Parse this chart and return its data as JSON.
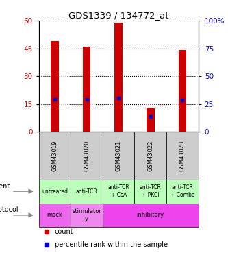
{
  "title": "GDS1339 / 134772_at",
  "samples": [
    "GSM43019",
    "GSM43020",
    "GSM43021",
    "GSM43022",
    "GSM43023"
  ],
  "count_values": [
    49,
    46,
    59,
    13,
    44
  ],
  "percentile_values": [
    29,
    29,
    30.5,
    13.5,
    28.5
  ],
  "left_ylim": [
    0,
    60
  ],
  "right_ylim": [
    0,
    100
  ],
  "left_yticks": [
    0,
    15,
    30,
    45,
    60
  ],
  "right_yticks": [
    0,
    25,
    50,
    75,
    100
  ],
  "left_yticklabels": [
    "0",
    "15",
    "30",
    "45",
    "60"
  ],
  "right_yticklabels": [
    "0",
    "25",
    "50",
    "75",
    "100%"
  ],
  "bar_color": "#cc0000",
  "dot_color": "#0000cc",
  "agent_labels": [
    "untreated",
    "anti-TCR",
    "anti-TCR\n+ CsA",
    "anti-TCR\n+ PKCi",
    "anti-TCR\n+ Combo"
  ],
  "agent_bg": "#bbffbb",
  "protocol_bg_mock": "#ee66ee",
  "protocol_bg_stim": "#ee88ee",
  "protocol_bg_inhib": "#ee44ee",
  "sample_header_bg": "#cccccc",
  "legend_count_color": "#cc0000",
  "legend_pct_color": "#0000cc",
  "bar_width": 0.25
}
